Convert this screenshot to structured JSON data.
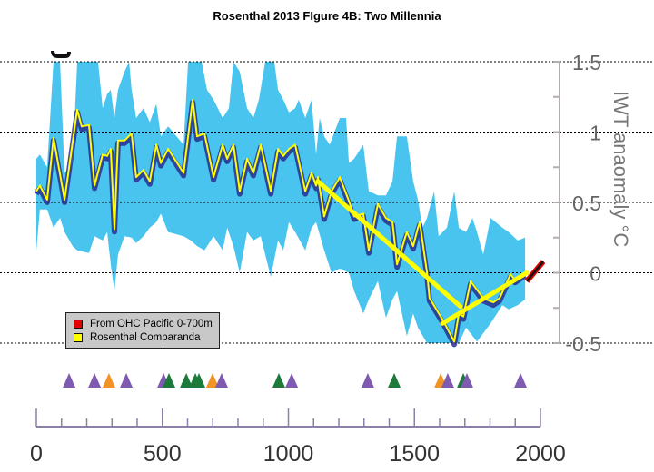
{
  "chart_data": {
    "type": "line",
    "title": "Rosenthal 2013 FIgure 4B: Two Millennia",
    "xlabel": "",
    "ylabel": "IWT anaomaly °C",
    "xlim": [
      0,
      2000
    ],
    "ylim": [
      -0.5,
      1.5
    ],
    "x_ticks": [
      "0",
      "500",
      "1000",
      "1500",
      "2000"
    ],
    "y_ticks": [
      "1.5",
      "1",
      "0.5",
      "0",
      "-0.5"
    ],
    "y_tick_values": [
      1.5,
      1,
      0.5,
      0,
      -0.5
    ],
    "x_tick_values": [
      0,
      500,
      1000,
      1500,
      2000
    ],
    "x_minor_step": 100,
    "grid": "horizontal-dotted",
    "legend": {
      "position": "bottom-left",
      "entries": [
        {
          "label": "From OHC Pacific 0-700m",
          "color": "#e00000"
        },
        {
          "label": "Rosenthal Comparanda",
          "color": "#ffff00"
        }
      ]
    },
    "colors": {
      "band": "#3ec1ee",
      "median": "#2a2f8f",
      "comparanda": "#ffff00",
      "ohc": "#e00000",
      "ohc_core": "#111111",
      "axis": "#8e7fa8",
      "purple": "#7e5bb0",
      "orange": "#f39325",
      "green": "#1d7a3a"
    },
    "uncertainty_band": {
      "upper": [
        [
          0,
          0.81
        ],
        [
          14,
          0.84
        ],
        [
          43,
          0.75
        ],
        [
          68,
          1.5
        ],
        [
          94,
          1.5
        ],
        [
          112,
          0.71
        ],
        [
          144,
          0.78
        ],
        [
          162,
          1.5
        ],
        [
          245,
          1.5
        ],
        [
          263,
          1.17
        ],
        [
          281,
          1.27
        ],
        [
          295,
          1.3
        ],
        [
          310,
          1.1
        ],
        [
          324,
          1.3
        ],
        [
          350,
          1.43
        ],
        [
          368,
          1.5
        ],
        [
          378,
          1.3
        ],
        [
          396,
          1.1
        ],
        [
          425,
          1.17
        ],
        [
          450,
          1.07
        ],
        [
          476,
          1.2
        ],
        [
          494,
          0.97
        ],
        [
          523,
          1.04
        ],
        [
          584,
          0.91
        ],
        [
          602,
          1.5
        ],
        [
          656,
          1.5
        ],
        [
          677,
          1.3
        ],
        [
          703,
          1.23
        ],
        [
          739,
          1.1
        ],
        [
          764,
          1.17
        ],
        [
          782,
          1.5
        ],
        [
          807,
          1.43
        ],
        [
          836,
          1.17
        ],
        [
          861,
          1.1
        ],
        [
          883,
          1.23
        ],
        [
          908,
          1.5
        ],
        [
          944,
          1.5
        ],
        [
          959,
          1.3
        ],
        [
          980,
          1.23
        ],
        [
          1002,
          1.14
        ],
        [
          1027,
          1.17
        ],
        [
          1041,
          1.23
        ],
        [
          1067,
          1.1
        ],
        [
          1092,
          1.23
        ],
        [
          1110,
          0.84
        ],
        [
          1124,
          1.1
        ],
        [
          1142,
          0.97
        ],
        [
          1164,
          0.91
        ],
        [
          1204,
          1.1
        ],
        [
          1229,
          1.1
        ],
        [
          1240,
          0.78
        ],
        [
          1261,
          0.81
        ],
        [
          1297,
          0.91
        ],
        [
          1319,
          0.58
        ],
        [
          1355,
          0.55
        ],
        [
          1387,
          0.55
        ],
        [
          1413,
          0.65
        ],
        [
          1431,
          0.97
        ],
        [
          1470,
          0.97
        ],
        [
          1495,
          0.65
        ],
        [
          1514,
          0.52
        ],
        [
          1532,
          0.32
        ],
        [
          1550,
          0.39
        ],
        [
          1578,
          0.58
        ],
        [
          1596,
          0.26
        ],
        [
          1629,
          0.32
        ],
        [
          1658,
          0.58
        ],
        [
          1676,
          0.32
        ],
        [
          1705,
          0.29
        ],
        [
          1730,
          0.39
        ],
        [
          1748,
          0.29
        ],
        [
          1773,
          0.13
        ],
        [
          1802,
          0.39
        ],
        [
          1849,
          0.32
        ],
        [
          1874,
          0.29
        ],
        [
          1910,
          0.23
        ],
        [
          1939,
          0.25
        ]
      ],
      "lower": [
        [
          0,
          0.16
        ],
        [
          14,
          0.45
        ],
        [
          43,
          0.45
        ],
        [
          68,
          0.32
        ],
        [
          94,
          0.39
        ],
        [
          112,
          0.29
        ],
        [
          144,
          0.19
        ],
        [
          162,
          0.16
        ],
        [
          209,
          0.14
        ],
        [
          231,
          0.26
        ],
        [
          263,
          0.23
        ],
        [
          281,
          0.29
        ],
        [
          295,
          0.06
        ],
        [
          310,
          -0.13
        ],
        [
          324,
          0.13
        ],
        [
          350,
          0.26
        ],
        [
          378,
          0.25
        ],
        [
          396,
          0.21
        ],
        [
          425,
          0.26
        ],
        [
          450,
          0.32
        ],
        [
          476,
          0.36
        ],
        [
          494,
          0.42
        ],
        [
          523,
          0.29
        ],
        [
          584,
          0.26
        ],
        [
          613,
          0.23
        ],
        [
          638,
          0.19
        ],
        [
          667,
          0.16
        ],
        [
          703,
          0.26
        ],
        [
          739,
          0.16
        ],
        [
          757,
          0.32
        ],
        [
          782,
          0.19
        ],
        [
          807,
          0
        ],
        [
          836,
          0.29
        ],
        [
          861,
          0.23
        ],
        [
          890,
          0.26
        ],
        [
          930,
          -0.03
        ],
        [
          959,
          0.23
        ],
        [
          980,
          0.16
        ],
        [
          1002,
          0.36
        ],
        [
          1027,
          0.29
        ],
        [
          1067,
          0.16
        ],
        [
          1092,
          0.32
        ],
        [
          1110,
          0.36
        ],
        [
          1142,
          0.16
        ],
        [
          1171,
          0
        ],
        [
          1204,
          0.03
        ],
        [
          1240,
          0
        ],
        [
          1261,
          -0.13
        ],
        [
          1297,
          -0.29
        ],
        [
          1319,
          -0.19
        ],
        [
          1355,
          -0.06
        ],
        [
          1387,
          -0.32
        ],
        [
          1413,
          -0.19
        ],
        [
          1431,
          -0.13
        ],
        [
          1470,
          -0.45
        ],
        [
          1495,
          -0.29
        ],
        [
          1514,
          -0.39
        ],
        [
          1550,
          -0.5
        ],
        [
          1676,
          -0.5
        ],
        [
          1705,
          -0.39
        ],
        [
          1748,
          -0.49
        ],
        [
          1802,
          -0.36
        ],
        [
          1849,
          -0.23
        ],
        [
          1874,
          -0.26
        ],
        [
          1910,
          -0.23
        ],
        [
          1939,
          -0.19
        ]
      ]
    },
    "series": [
      {
        "name": "Rosenthal Comparanda",
        "points": [
          [
            0,
            0.58
          ],
          [
            14,
            0.62
          ],
          [
            43,
            0.52
          ],
          [
            68,
            0.96
          ],
          [
            112,
            0.52
          ],
          [
            162,
            1.16
          ],
          [
            180,
            1.04
          ],
          [
            209,
            1.05
          ],
          [
            231,
            0.62
          ],
          [
            263,
            0.84
          ],
          [
            281,
            0.83
          ],
          [
            295,
            0.88
          ],
          [
            310,
            0.31
          ],
          [
            324,
            0.94
          ],
          [
            350,
            0.94
          ],
          [
            378,
            0.99
          ],
          [
            396,
            0.68
          ],
          [
            425,
            0.73
          ],
          [
            450,
            0.65
          ],
          [
            476,
            0.91
          ],
          [
            494,
            0.78
          ],
          [
            523,
            0.88
          ],
          [
            584,
            0.71
          ],
          [
            620,
            1.23
          ],
          [
            638,
            0.97
          ],
          [
            667,
            0.99
          ],
          [
            703,
            0.68
          ],
          [
            739,
            0.91
          ],
          [
            757,
            0.81
          ],
          [
            782,
            0.91
          ],
          [
            807,
            0.58
          ],
          [
            836,
            0.81
          ],
          [
            861,
            0.71
          ],
          [
            890,
            0.91
          ],
          [
            930,
            0.58
          ],
          [
            959,
            0.88
          ],
          [
            980,
            0.83
          ],
          [
            1002,
            0.88
          ],
          [
            1027,
            0.91
          ],
          [
            1067,
            0.58
          ],
          [
            1092,
            0.71
          ],
          [
            1110,
            0.62
          ],
          [
            1117,
            0.68
          ],
          [
            1142,
            0.4
          ],
          [
            1171,
            0.58
          ],
          [
            1204,
            0.68
          ],
          [
            1240,
            0.51
          ],
          [
            1261,
            0.4
          ],
          [
            1297,
            0.42
          ],
          [
            1319,
            0.16
          ],
          [
            1355,
            0.49
          ],
          [
            1387,
            0.39
          ],
          [
            1413,
            0.36
          ],
          [
            1431,
            0.06
          ],
          [
            1470,
            0.29
          ],
          [
            1495,
            0.19
          ],
          [
            1514,
            0.32
          ],
          [
            1521,
            0.36
          ],
          [
            1550,
            0
          ],
          [
            1560,
            -0.18
          ],
          [
            1614,
            -0.34
          ],
          [
            1658,
            -0.49
          ],
          [
            1676,
            -0.29
          ],
          [
            1694,
            -0.31
          ],
          [
            1723,
            -0.06
          ],
          [
            1773,
            -0.18
          ],
          [
            1813,
            -0.21
          ],
          [
            1838,
            -0.18
          ],
          [
            1881,
            -0.01
          ],
          [
            1899,
            -0.05
          ],
          [
            1939,
            0
          ]
        ]
      },
      {
        "name": "Trend decline",
        "points": [
          [
            1117,
            0.65
          ],
          [
            1683,
            -0.24
          ]
        ]
      },
      {
        "name": "Trend recovery",
        "points": [
          [
            1611,
            -0.36
          ],
          [
            1946,
            0
          ]
        ]
      },
      {
        "name": "From OHC Pacific 0-700m",
        "points": [
          [
            1946,
            -0.06
          ],
          [
            2011,
            0.08
          ]
        ]
      }
    ],
    "markers": [
      {
        "year": 130,
        "color": "purple"
      },
      {
        "year": 231,
        "color": "purple"
      },
      {
        "year": 288,
        "color": "orange"
      },
      {
        "year": 357,
        "color": "purple"
      },
      {
        "year": 505,
        "color": "purple"
      },
      {
        "year": 526,
        "color": "green"
      },
      {
        "year": 595,
        "color": "green"
      },
      {
        "year": 631,
        "color": "green"
      },
      {
        "year": 645,
        "color": "green"
      },
      {
        "year": 699,
        "color": "orange"
      },
      {
        "year": 735,
        "color": "purple"
      },
      {
        "year": 962,
        "color": "green"
      },
      {
        "year": 1013,
        "color": "purple"
      },
      {
        "year": 1315,
        "color": "purple"
      },
      {
        "year": 1420,
        "color": "green"
      },
      {
        "year": 1604,
        "color": "orange"
      },
      {
        "year": 1632,
        "color": "purple"
      },
      {
        "year": 1694,
        "color": "green"
      },
      {
        "year": 1708,
        "color": "purple"
      },
      {
        "year": 1921,
        "color": "purple"
      }
    ]
  }
}
